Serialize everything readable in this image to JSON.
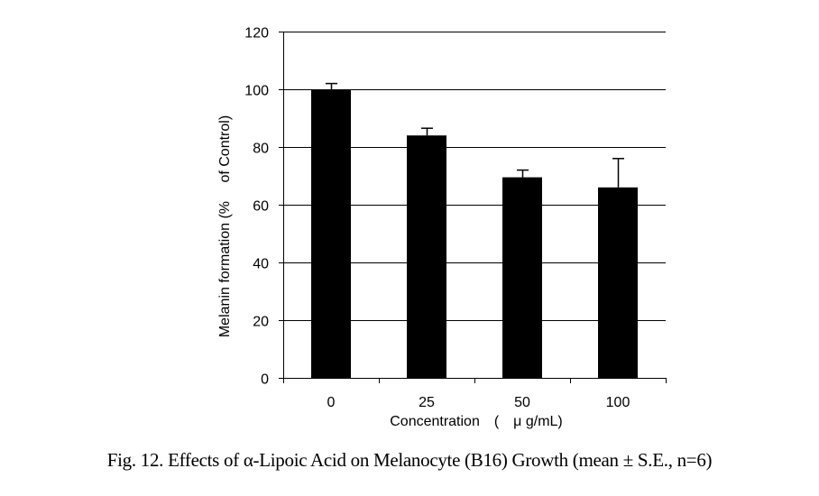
{
  "chart_data": {
    "type": "bar",
    "categories": [
      "0",
      "25",
      "50",
      "100"
    ],
    "values": [
      100,
      84,
      69.5,
      66
    ],
    "errors": [
      2,
      2.5,
      2.5,
      10
    ],
    "title": "",
    "xlabel": "Concentration　(　μ g/mL)",
    "ylabel": "Melanin formation (%　 of Control)",
    "ylim": [
      0,
      120
    ],
    "yticks": [
      "0",
      "20",
      "40",
      "60",
      "80",
      "100",
      "120"
    ],
    "grid": true,
    "bar_color": "#000000",
    "grid_color": "#000000"
  },
  "caption": "Fig. 12. Effects of α-Lipoic Acid on Melanocyte (B16) Growth (mean ± S.E., n=6)"
}
